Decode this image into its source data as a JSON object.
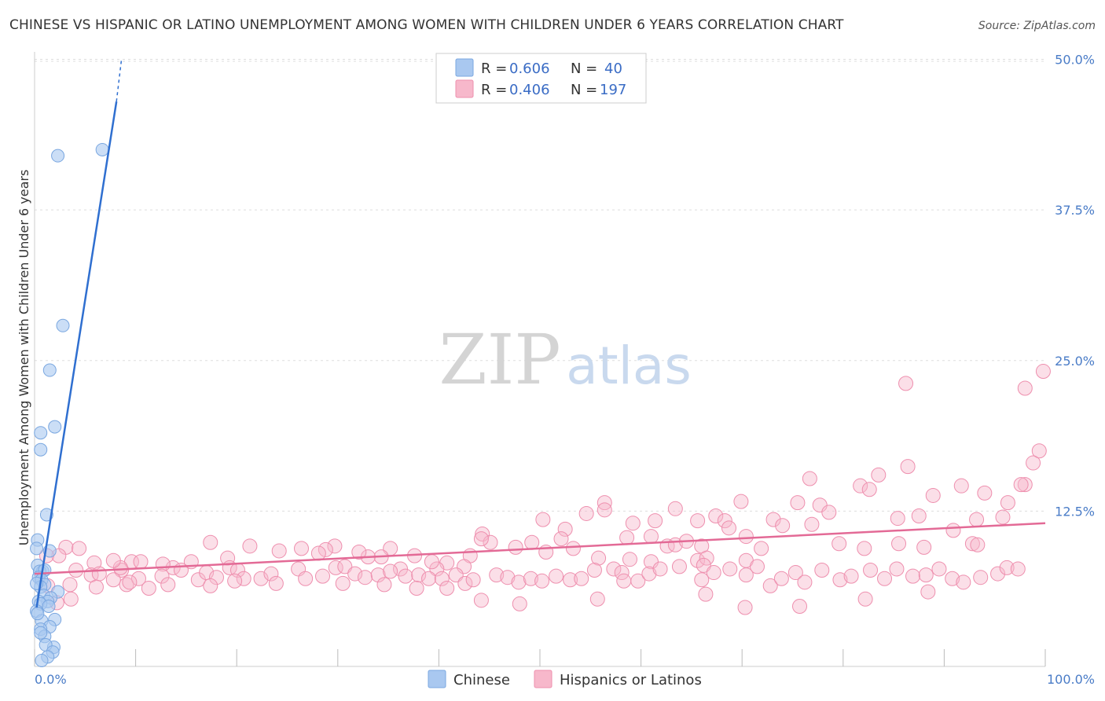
{
  "title": "CHINESE VS HISPANIC OR LATINO UNEMPLOYMENT AMONG WOMEN WITH CHILDREN UNDER 6 YEARS CORRELATION CHART",
  "source": "Source: ZipAtlas.com",
  "watermark": {
    "zip": "ZIP",
    "atlas": "atlas"
  },
  "colors": {
    "chinese_fill": "#a9c8f0",
    "chinese_stroke": "#7aa7e0",
    "chinese_line": "#2f6fd0",
    "hispanic_fill": "#f7b8cb",
    "hispanic_stroke": "#ee8fae",
    "hispanic_line": "#e36a96",
    "tick_label": "#4a7cc7",
    "grid": "#dddddd"
  },
  "legend": {
    "rows": [
      {
        "r_label": "R =",
        "r_value": "0.606",
        "n_label": "N =",
        "n_value": "40"
      },
      {
        "r_label": "R =",
        "r_value": "0.406",
        "n_label": "N =",
        "n_value": "197"
      }
    ]
  },
  "chart_data": {
    "type": "scatter",
    "ylabel": "Unemployment Among Women with Children Under 6 years",
    "xlim": [
      0,
      100
    ],
    "ylim": [
      0,
      52
    ],
    "x_tick_labels": [
      "0.0%",
      "100.0%"
    ],
    "y_ticks": [
      12.5,
      25.0,
      37.5,
      50.0
    ],
    "y_tick_labels": [
      "12.5%",
      "25.0%",
      "37.5%",
      "50.0%"
    ],
    "grid": true,
    "series": [
      {
        "name": "Chinese",
        "color": "#a9c8f0",
        "trend": {
          "x1": 0.2,
          "y1": 4.5,
          "x2": 8.1,
          "y2": 46.5,
          "dash_x2": 8.6,
          "dash_y2": 50.0
        },
        "points": [
          [
            6.7,
            42.5
          ],
          [
            2.3,
            42.0
          ],
          [
            2.8,
            27.9
          ],
          [
            1.5,
            24.2
          ],
          [
            2.0,
            19.5
          ],
          [
            0.6,
            19.0
          ],
          [
            0.6,
            17.6
          ],
          [
            1.2,
            12.2
          ],
          [
            0.3,
            10.1
          ],
          [
            0.2,
            9.4
          ],
          [
            1.5,
            9.2
          ],
          [
            0.3,
            8.0
          ],
          [
            0.8,
            7.5
          ],
          [
            0.5,
            7.5
          ],
          [
            1.0,
            7.6
          ],
          [
            0.4,
            7.0
          ],
          [
            0.7,
            6.8
          ],
          [
            1.0,
            6.4
          ],
          [
            0.6,
            6.2
          ],
          [
            0.2,
            6.5
          ],
          [
            2.3,
            5.8
          ],
          [
            0.9,
            5.5
          ],
          [
            1.6,
            5.3
          ],
          [
            1.3,
            5.0
          ],
          [
            0.4,
            5.0
          ],
          [
            0.6,
            4.8
          ],
          [
            1.4,
            4.6
          ],
          [
            0.2,
            4.2
          ],
          [
            2.0,
            3.5
          ],
          [
            0.7,
            3.4
          ],
          [
            1.5,
            2.9
          ],
          [
            0.6,
            2.7
          ],
          [
            1.0,
            2.1
          ],
          [
            0.6,
            2.4
          ],
          [
            1.9,
            1.2
          ],
          [
            1.1,
            1.4
          ],
          [
            1.8,
            0.8
          ],
          [
            1.3,
            0.4
          ],
          [
            0.7,
            0.1
          ],
          [
            0.3,
            4.0
          ]
        ]
      },
      {
        "name": "Hispanics or Latinos",
        "color": "#f7b8cb",
        "trend": {
          "x1": 0,
          "y1": 7.3,
          "x2": 100,
          "y2": 11.5
        },
        "points": [
          [
            99.8,
            24.1
          ],
          [
            86.2,
            23.1
          ],
          [
            98.0,
            22.7
          ],
          [
            99.4,
            17.5
          ],
          [
            98.8,
            16.5
          ],
          [
            86.4,
            16.2
          ],
          [
            91.7,
            14.6
          ],
          [
            98.0,
            14.7
          ],
          [
            97.6,
            14.7
          ],
          [
            83.5,
            15.5
          ],
          [
            76.7,
            15.2
          ],
          [
            81.7,
            14.6
          ],
          [
            88.9,
            13.8
          ],
          [
            82.6,
            14.3
          ],
          [
            94.0,
            14.0
          ],
          [
            96.3,
            13.2
          ],
          [
            56.4,
            13.2
          ],
          [
            77.7,
            13.0
          ],
          [
            87.5,
            12.1
          ],
          [
            75.5,
            13.2
          ],
          [
            69.9,
            13.3
          ],
          [
            78.6,
            12.4
          ],
          [
            63.4,
            12.7
          ],
          [
            67.4,
            12.1
          ],
          [
            68.3,
            11.7
          ],
          [
            56.4,
            12.6
          ],
          [
            54.6,
            12.3
          ],
          [
            44.3,
            10.6
          ],
          [
            50.3,
            11.8
          ],
          [
            52.5,
            11.0
          ],
          [
            59.2,
            11.5
          ],
          [
            61.4,
            11.7
          ],
          [
            73.1,
            11.8
          ],
          [
            85.4,
            11.9
          ],
          [
            93.2,
            11.8
          ],
          [
            95.8,
            12.0
          ],
          [
            74.0,
            11.3
          ],
          [
            68.7,
            11.1
          ],
          [
            65.6,
            11.7
          ],
          [
            76.9,
            11.4
          ],
          [
            90.9,
            10.9
          ],
          [
            92.8,
            9.8
          ],
          [
            93.3,
            9.7
          ],
          [
            58.6,
            10.3
          ],
          [
            61.0,
            10.4
          ],
          [
            62.6,
            9.6
          ],
          [
            63.4,
            9.7
          ],
          [
            64.5,
            10.0
          ],
          [
            66.0,
            9.6
          ],
          [
            70.4,
            10.4
          ],
          [
            71.9,
            9.4
          ],
          [
            79.6,
            9.8
          ],
          [
            85.5,
            9.8
          ],
          [
            88.0,
            9.5
          ],
          [
            82.1,
            9.4
          ],
          [
            65.6,
            8.4
          ],
          [
            66.5,
            8.6
          ],
          [
            70.4,
            8.4
          ],
          [
            66.2,
            8.0
          ],
          [
            61.0,
            8.3
          ],
          [
            58.9,
            8.5
          ],
          [
            55.8,
            8.6
          ],
          [
            53.3,
            9.4
          ],
          [
            52.1,
            10.2
          ],
          [
            50.6,
            9.1
          ],
          [
            49.2,
            9.9
          ],
          [
            47.6,
            9.5
          ],
          [
            45.1,
            9.9
          ],
          [
            44.2,
            10.2
          ],
          [
            43.1,
            8.8
          ],
          [
            42.5,
            7.9
          ],
          [
            40.8,
            8.2
          ],
          [
            39.8,
            7.7
          ],
          [
            39.3,
            8.3
          ],
          [
            37.6,
            8.8
          ],
          [
            36.2,
            7.7
          ],
          [
            35.2,
            9.4
          ],
          [
            34.3,
            8.7
          ],
          [
            33.0,
            8.7
          ],
          [
            32.1,
            9.1
          ],
          [
            29.7,
            9.6
          ],
          [
            28.8,
            9.3
          ],
          [
            28.1,
            9.0
          ],
          [
            26.4,
            9.4
          ],
          [
            24.2,
            9.2
          ],
          [
            21.3,
            9.6
          ],
          [
            19.1,
            8.6
          ],
          [
            17.4,
            9.9
          ],
          [
            15.5,
            8.3
          ],
          [
            13.7,
            7.8
          ],
          [
            12.7,
            8.1
          ],
          [
            9.6,
            8.3
          ],
          [
            8.6,
            7.6
          ],
          [
            8.5,
            7.8
          ],
          [
            7.8,
            8.4
          ],
          [
            5.9,
            8.2
          ],
          [
            3.1,
            9.5
          ],
          [
            2.4,
            8.8
          ],
          [
            1.2,
            8.8
          ],
          [
            1.3,
            6.3
          ],
          [
            3.5,
            6.4
          ],
          [
            4.1,
            7.6
          ],
          [
            4.4,
            9.4
          ],
          [
            5.6,
            7.2
          ],
          [
            6.4,
            7.3
          ],
          [
            9.1,
            6.4
          ],
          [
            10.3,
            6.9
          ],
          [
            10.5,
            8.3
          ],
          [
            11.3,
            6.1
          ],
          [
            12.6,
            7.1
          ],
          [
            14.5,
            7.6
          ],
          [
            16.2,
            6.8
          ],
          [
            17.0,
            7.4
          ],
          [
            18.0,
            7.0
          ],
          [
            19.3,
            7.8
          ],
          [
            20.1,
            7.6
          ],
          [
            20.7,
            6.9
          ],
          [
            22.4,
            6.9
          ],
          [
            23.4,
            7.3
          ],
          [
            26.1,
            7.7
          ],
          [
            26.8,
            6.9
          ],
          [
            28.5,
            7.1
          ],
          [
            29.8,
            7.8
          ],
          [
            30.7,
            7.9
          ],
          [
            31.7,
            7.3
          ],
          [
            32.7,
            7.0
          ],
          [
            34.0,
            7.2
          ],
          [
            35.2,
            7.5
          ],
          [
            36.7,
            7.1
          ],
          [
            38.0,
            7.2
          ],
          [
            39.0,
            6.9
          ],
          [
            40.3,
            6.9
          ],
          [
            41.7,
            7.2
          ],
          [
            42.6,
            6.5
          ],
          [
            43.4,
            6.8
          ],
          [
            45.7,
            7.2
          ],
          [
            46.8,
            7.0
          ],
          [
            47.9,
            6.6
          ],
          [
            49.1,
            6.9
          ],
          [
            50.2,
            6.7
          ],
          [
            51.6,
            7.1
          ],
          [
            53.0,
            6.8
          ],
          [
            54.1,
            6.9
          ],
          [
            55.4,
            7.6
          ],
          [
            57.3,
            7.7
          ],
          [
            58.1,
            7.4
          ],
          [
            59.7,
            6.7
          ],
          [
            60.8,
            7.3
          ],
          [
            61.9,
            7.7
          ],
          [
            63.8,
            7.9
          ],
          [
            66.0,
            6.8
          ],
          [
            67.2,
            7.4
          ],
          [
            68.8,
            7.7
          ],
          [
            70.4,
            7.2
          ],
          [
            71.5,
            7.9
          ],
          [
            72.8,
            6.3
          ],
          [
            73.9,
            6.9
          ],
          [
            75.3,
            7.4
          ],
          [
            76.2,
            6.6
          ],
          [
            77.9,
            7.6
          ],
          [
            79.7,
            6.8
          ],
          [
            80.8,
            7.1
          ],
          [
            82.7,
            7.6
          ],
          [
            84.1,
            6.9
          ],
          [
            85.3,
            7.7
          ],
          [
            86.9,
            7.1
          ],
          [
            88.2,
            7.2
          ],
          [
            89.5,
            7.7
          ],
          [
            90.8,
            6.9
          ],
          [
            91.9,
            6.6
          ],
          [
            93.6,
            7.0
          ],
          [
            95.3,
            7.3
          ],
          [
            96.2,
            7.8
          ],
          [
            97.3,
            7.7
          ],
          [
            88.4,
            5.8
          ],
          [
            82.2,
            5.2
          ],
          [
            75.7,
            4.6
          ],
          [
            70.3,
            4.5
          ],
          [
            66.4,
            5.6
          ],
          [
            58.3,
            6.7
          ],
          [
            55.7,
            5.2
          ],
          [
            48.0,
            4.8
          ],
          [
            44.2,
            5.1
          ],
          [
            40.8,
            6.1
          ],
          [
            37.8,
            6.1
          ],
          [
            34.6,
            6.4
          ],
          [
            30.5,
            6.5
          ],
          [
            23.9,
            6.5
          ],
          [
            19.8,
            6.7
          ],
          [
            17.4,
            6.3
          ],
          [
            13.2,
            6.4
          ],
          [
            9.4,
            6.6
          ],
          [
            7.8,
            6.8
          ],
          [
            6.1,
            6.2
          ],
          [
            3.6,
            5.2
          ],
          [
            2.2,
            4.9
          ]
        ]
      }
    ]
  },
  "bottom_legend": [
    "Chinese",
    "Hispanics or Latinos"
  ]
}
